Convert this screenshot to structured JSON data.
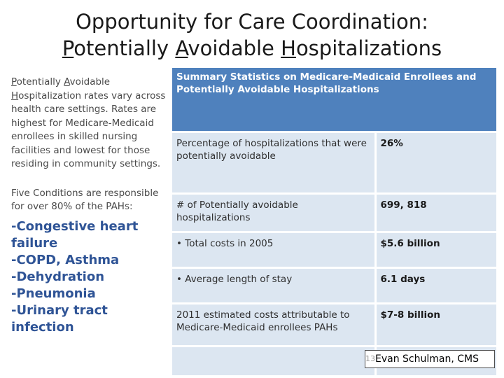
{
  "title": {
    "line1": "Opportunity for Care Coordination:",
    "p": "P",
    "otentially": "otentially ",
    "a": "A",
    "voidable": "voidable ",
    "h": "H",
    "ospitalizations": "ospitalizations"
  },
  "left": {
    "para1_p": "P",
    "para1_otentially": "otentially ",
    "para1_a": "A",
    "para1_voidable": "voidable",
    "para1_h": "H",
    "para1_rest": "ospitalization rates vary across health care settings. Rates are highest for Medicare-Medicaid enrollees in skilled nursing facilities and lowest for those residing in community settings.",
    "para2": "Five Conditions are responsible for over 80% of the PAHs:",
    "conditions": [
      "-Congestive heart failure",
      "-COPD, Asthma",
      "-Dehydration",
      "-Pneumonia",
      "-Urinary tract infection"
    ]
  },
  "table": {
    "header": "Summary Statistics on Medicare-Medicaid Enrollees and Potentially Avoidable Hospitalizations",
    "rows": [
      {
        "label": "Percentage of hospitalizations that were potentially avoidable",
        "value": "26%"
      },
      {
        "label": "# of Potentially avoidable hospitalizations",
        "value": "699, 818"
      },
      {
        "label": "• Total costs in 2005",
        "value": "$5.6 billion"
      },
      {
        "label": "• Average length of stay",
        "value": "6.1 days"
      },
      {
        "label": "2011 estimated costs attributable to Medicare-Medicaid enrollees PAHs",
        "value": "$7-8 billion"
      },
      {
        "label": "",
        "value": ""
      }
    ]
  },
  "credit": {
    "number": "13",
    "text": "Evan Schulman, CMS"
  }
}
